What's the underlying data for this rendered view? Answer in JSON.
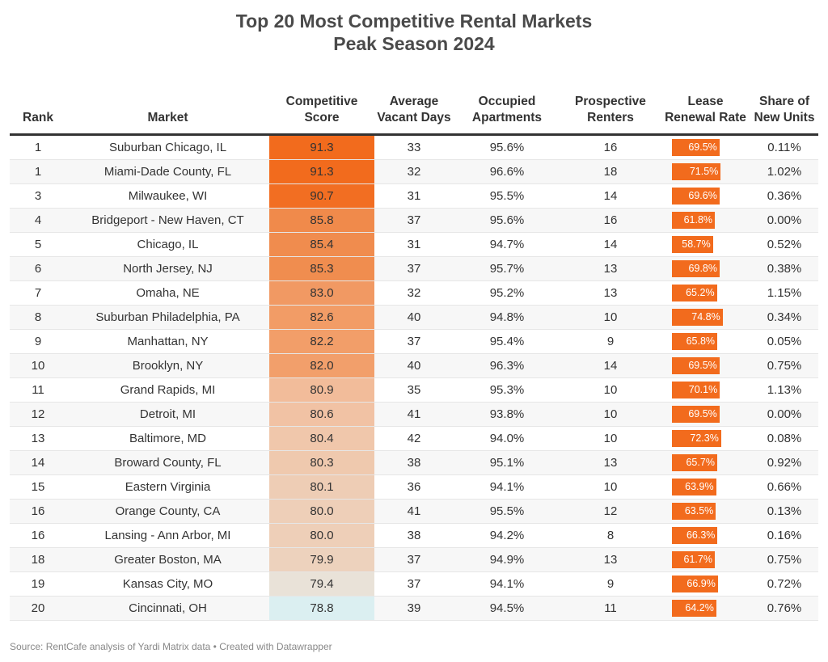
{
  "chart_data": {
    "type": "table",
    "title": "Top 20 Most Competitive Rental Markets",
    "subtitle": "Peak Season 2024",
    "columns": [
      "Rank",
      "Market",
      "Competitive Score",
      "Average Vacant Days",
      "Occupied Apartments",
      "Prospective Renters",
      "Lease Renewal Rate",
      "Share of New Units"
    ],
    "rows": [
      [
        "1",
        "Suburban Chicago, IL",
        "91.3",
        "33",
        "95.6%",
        "16",
        "69.5%",
        "0.11%"
      ],
      [
        "1",
        "Miami-Dade County, FL",
        "91.3",
        "32",
        "96.6%",
        "18",
        "71.5%",
        "1.02%"
      ],
      [
        "3",
        "Milwaukee, WI",
        "90.7",
        "31",
        "95.5%",
        "14",
        "69.6%",
        "0.36%"
      ],
      [
        "4",
        "Bridgeport - New Haven, CT",
        "85.8",
        "37",
        "95.6%",
        "16",
        "61.8%",
        "0.00%"
      ],
      [
        "5",
        "Chicago, IL",
        "85.4",
        "31",
        "94.7%",
        "14",
        "58.7%",
        "0.52%"
      ],
      [
        "6",
        "North Jersey, NJ",
        "85.3",
        "37",
        "95.7%",
        "13",
        "69.8%",
        "0.38%"
      ],
      [
        "7",
        "Omaha, NE",
        "83.0",
        "32",
        "95.2%",
        "13",
        "65.2%",
        "1.15%"
      ],
      [
        "8",
        "Suburban Philadelphia, PA",
        "82.6",
        "40",
        "94.8%",
        "10",
        "74.8%",
        "0.34%"
      ],
      [
        "9",
        "Manhattan, NY",
        "82.2",
        "37",
        "95.4%",
        "9",
        "65.8%",
        "0.05%"
      ],
      [
        "10",
        "Brooklyn, NY",
        "82.0",
        "40",
        "96.3%",
        "14",
        "69.5%",
        "0.75%"
      ],
      [
        "11",
        "Grand Rapids, MI",
        "80.9",
        "35",
        "95.3%",
        "10",
        "70.1%",
        "1.13%"
      ],
      [
        "12",
        "Detroit, MI",
        "80.6",
        "41",
        "93.8%",
        "10",
        "69.5%",
        "0.00%"
      ],
      [
        "13",
        "Baltimore, MD",
        "80.4",
        "42",
        "94.0%",
        "10",
        "72.3%",
        "0.08%"
      ],
      [
        "14",
        "Broward County, FL",
        "80.3",
        "38",
        "95.1%",
        "13",
        "65.7%",
        "0.92%"
      ],
      [
        "15",
        "Eastern Virginia",
        "80.1",
        "36",
        "94.1%",
        "10",
        "63.9%",
        "0.66%"
      ],
      [
        "16",
        "Orange County, CA",
        "80.0",
        "41",
        "95.5%",
        "12",
        "63.5%",
        "0.13%"
      ],
      [
        "16",
        "Lansing - Ann Arbor, MI",
        "80.0",
        "38",
        "94.2%",
        "8",
        "66.3%",
        "0.16%"
      ],
      [
        "18",
        "Greater Boston, MA",
        "79.9",
        "37",
        "94.9%",
        "13",
        "61.7%",
        "0.75%"
      ],
      [
        "19",
        "Kansas City, MO",
        "79.4",
        "37",
        "94.1%",
        "9",
        "66.9%",
        "0.72%"
      ],
      [
        "20",
        "Cincinnati, OH",
        "78.8",
        "39",
        "94.5%",
        "11",
        "64.2%",
        "0.76%"
      ]
    ],
    "score_color_scale": {
      "low": "#dceff2",
      "high": "#f26b1d"
    },
    "bar_color": "#f26b1d"
  },
  "footer": "Source: RentCafe analysis of Yardi Matrix data • Created with Datawrapper"
}
